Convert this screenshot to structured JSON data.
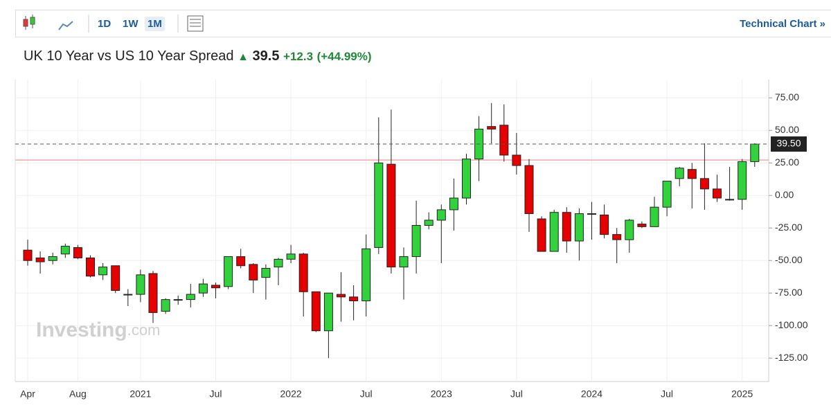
{
  "toolbar": {
    "intervals": [
      "1D",
      "1W",
      "1M"
    ],
    "active_interval": 2,
    "link": "Technical Chart »"
  },
  "header": {
    "title": "UK 10 Year vs US 10 Year Spread",
    "price": "39.5",
    "change": "+12.3",
    "change_pct": "(+44.99%)"
  },
  "chart_data": {
    "type": "candlestick",
    "watermark": "Investing",
    "watermark_suffix": ".com",
    "categories": [
      "Apr",
      null,
      null,
      null,
      "Aug",
      null,
      null,
      null,
      null,
      "2021",
      null,
      null,
      null,
      null,
      null,
      "Jul",
      null,
      null,
      null,
      null,
      null,
      "2022",
      null,
      null,
      null,
      null,
      null,
      "Jul",
      null,
      null,
      null,
      null,
      null,
      "2023",
      null,
      null,
      null,
      null,
      null,
      "Jul",
      null,
      null,
      null,
      null,
      null,
      "2024",
      null,
      null,
      null,
      null,
      null,
      "Jul",
      null,
      null,
      null,
      null,
      null,
      "2025",
      null
    ],
    "open": [
      -42,
      -48,
      -50,
      -45,
      -40,
      -48,
      -61,
      -54,
      -76,
      -76,
      -60,
      -89,
      -80,
      -80,
      -75,
      -69,
      -70,
      -47,
      -53,
      -63,
      -55,
      -49,
      -45,
      -74,
      -104,
      -76,
      -78,
      -81,
      -40,
      24,
      -55,
      -47,
      -23,
      -19,
      -11,
      -2,
      28,
      53,
      54,
      31,
      23,
      -18,
      -43,
      -13,
      -35,
      -14,
      -15,
      -30,
      -34,
      -22,
      -24,
      -9,
      13,
      20,
      13,
      5,
      -3,
      -3,
      26
    ],
    "high": [
      -34,
      -43,
      -44,
      -37,
      -38,
      -46,
      -52,
      -54,
      -72,
      -57,
      -58,
      -79,
      -77,
      -68,
      -64,
      -67,
      -47,
      -41,
      -52,
      -53,
      -48,
      -38,
      -44,
      -74,
      -75,
      -59,
      -69,
      -30,
      60,
      66,
      -40,
      -4,
      -13,
      -7,
      13,
      32,
      61,
      71,
      70,
      48,
      28,
      -16,
      -11,
      -9,
      -10,
      -5,
      -7,
      -25,
      -18,
      -20,
      -1,
      11,
      22,
      25,
      40,
      16,
      22,
      28,
      40
    ],
    "low": [
      -54,
      -60,
      -53,
      -48,
      -49,
      -63,
      -65,
      -75,
      -85,
      -82,
      -98,
      -91,
      -84,
      -86,
      -78,
      -79,
      -72,
      -56,
      -75,
      -80,
      -69,
      -52,
      -93,
      -105,
      -125,
      -97,
      -96,
      -93,
      -45,
      -60,
      -80,
      -60,
      -26,
      -52,
      -27,
      -7,
      11,
      40,
      26,
      16,
      -28,
      -43,
      -43,
      -44,
      -50,
      -34,
      -33,
      -52,
      -44,
      -25,
      -24,
      -16,
      7,
      -10,
      -11,
      -5,
      -4,
      -11,
      22
    ],
    "close": [
      -50,
      -51,
      -47,
      -39,
      -48,
      -62,
      -55,
      -73,
      -76,
      -61,
      -90,
      -80,
      -80,
      -76,
      -68,
      -71,
      -47,
      -54,
      -65,
      -56,
      -49,
      -45,
      -74,
      -104,
      -75,
      -78,
      -81,
      -41,
      25,
      -55,
      -47,
      -23,
      -19,
      -11,
      -2,
      28,
      51,
      51,
      31,
      23,
      -14,
      -43,
      -13,
      -35,
      -14,
      -14,
      -30,
      -34,
      -19,
      -24,
      -9,
      11,
      21,
      13,
      5,
      -2,
      -3,
      26,
      39.5
    ],
    "up_color": "#32d23c",
    "down_color": "#e60000",
    "ylim": [
      -143,
      89
    ],
    "yticks": [
      {
        "value": 75,
        "label": "75.00"
      },
      {
        "value": 50,
        "label": "50.00"
      },
      {
        "value": 25,
        "label": "25.00"
      },
      {
        "value": 0,
        "label": "0.00"
      },
      {
        "value": -25,
        "label": "-25.00"
      },
      {
        "value": -50,
        "label": "-50.00"
      },
      {
        "value": -75,
        "label": "-75.00"
      },
      {
        "value": -100,
        "label": "-100.00"
      },
      {
        "value": -125,
        "label": "-125.00"
      }
    ],
    "last": {
      "value": 39.5,
      "label": "39.50"
    },
    "reference_line": 27.2,
    "grid": true
  }
}
